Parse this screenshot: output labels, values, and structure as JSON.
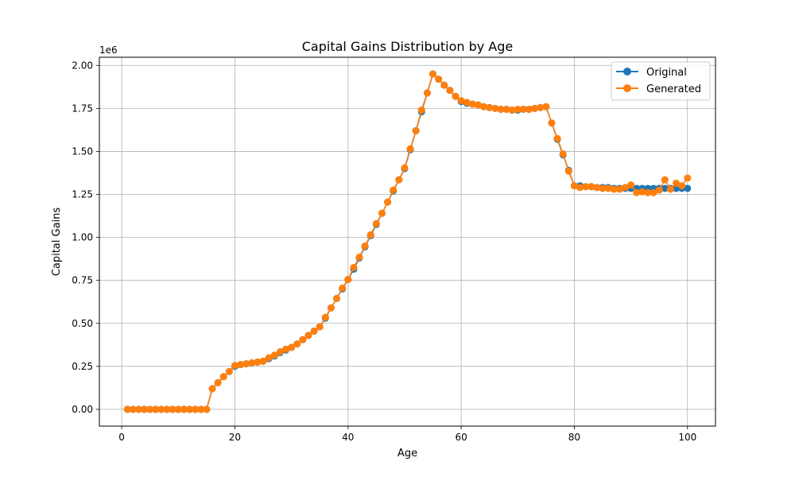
{
  "chart_data": {
    "type": "line",
    "title": "Capital Gains Distribution by Age",
    "xlabel": "Age",
    "ylabel": "Capital Gains",
    "y_exponent_label": "1e6",
    "xlim": [
      -3.95,
      104.95
    ],
    "ylim": [
      -0.0975,
      2.0475
    ],
    "y_scale": 1000000,
    "x_ticks": [
      0,
      20,
      40,
      60,
      80,
      100
    ],
    "x_tick_labels": [
      "0",
      "20",
      "40",
      "60",
      "80",
      "100"
    ],
    "y_ticks": [
      0,
      0.25,
      0.5,
      0.75,
      1.0,
      1.25,
      1.5,
      1.75,
      2.0
    ],
    "y_tick_labels": [
      "0.00",
      "0.25",
      "0.50",
      "0.75",
      "1.00",
      "1.25",
      "1.50",
      "1.75",
      "2.00"
    ],
    "grid": true,
    "legend_position": "top-right",
    "series": [
      {
        "name": "Original",
        "color": "#1f77b4",
        "x": [
          1,
          2,
          3,
          4,
          5,
          6,
          7,
          8,
          9,
          10,
          11,
          12,
          13,
          14,
          15,
          16,
          17,
          18,
          19,
          20,
          21,
          22,
          23,
          24,
          25,
          26,
          27,
          28,
          29,
          30,
          31,
          32,
          33,
          34,
          35,
          36,
          37,
          38,
          39,
          40,
          41,
          42,
          43,
          44,
          45,
          46,
          47,
          48,
          49,
          50,
          51,
          52,
          53,
          54,
          55,
          56,
          57,
          58,
          59,
          60,
          61,
          62,
          63,
          64,
          65,
          66,
          67,
          68,
          69,
          70,
          71,
          72,
          73,
          74,
          75,
          76,
          77,
          78,
          79,
          80,
          81,
          82,
          83,
          84,
          85,
          86,
          87,
          88,
          89,
          90,
          91,
          92,
          93,
          94,
          95,
          96,
          97,
          98,
          99,
          100
        ],
        "y": [
          0,
          0,
          0,
          0,
          0,
          0,
          0,
          0,
          0,
          0,
          0,
          0,
          0,
          0,
          0,
          0.12,
          0.155,
          0.19,
          0.22,
          0.25,
          0.26,
          0.265,
          0.27,
          0.275,
          0.28,
          0.295,
          0.31,
          0.33,
          0.345,
          0.36,
          0.38,
          0.405,
          0.43,
          0.455,
          0.48,
          0.53,
          0.59,
          0.645,
          0.7,
          0.755,
          0.815,
          0.88,
          0.945,
          1.01,
          1.075,
          1.14,
          1.205,
          1.27,
          1.335,
          1.4,
          1.51,
          1.62,
          1.73,
          1.84,
          1.95,
          1.92,
          1.885,
          1.855,
          1.82,
          1.79,
          1.78,
          1.775,
          1.77,
          1.76,
          1.755,
          1.75,
          1.745,
          1.745,
          1.74,
          1.74,
          1.745,
          1.745,
          1.75,
          1.755,
          1.76,
          1.665,
          1.57,
          1.48,
          1.39,
          1.3,
          1.3,
          1.295,
          1.295,
          1.29,
          1.29,
          1.29,
          1.285,
          1.285,
          1.285,
          1.285,
          1.285,
          1.285,
          1.285,
          1.285,
          1.285,
          1.285,
          1.285,
          1.285,
          1.285,
          1.285
        ]
      },
      {
        "name": "Generated",
        "color": "#ff7f0e",
        "x": [
          1,
          2,
          3,
          4,
          5,
          6,
          7,
          8,
          9,
          10,
          11,
          12,
          13,
          14,
          15,
          16,
          17,
          18,
          19,
          20,
          21,
          22,
          23,
          24,
          25,
          26,
          27,
          28,
          29,
          30,
          31,
          32,
          33,
          34,
          35,
          36,
          37,
          38,
          39,
          40,
          41,
          42,
          43,
          44,
          45,
          46,
          47,
          48,
          49,
          50,
          51,
          52,
          53,
          54,
          55,
          56,
          57,
          58,
          59,
          60,
          61,
          62,
          63,
          64,
          65,
          66,
          67,
          68,
          69,
          70,
          71,
          72,
          73,
          74,
          75,
          76,
          77,
          78,
          79,
          80,
          81,
          82,
          83,
          84,
          85,
          86,
          87,
          88,
          89,
          90,
          91,
          92,
          93,
          94,
          95,
          96,
          97,
          98,
          99,
          100
        ],
        "y": [
          0,
          0,
          0,
          0,
          0,
          0,
          0,
          0,
          0,
          0,
          0,
          0,
          0,
          0,
          0,
          0.12,
          0.155,
          0.19,
          0.22,
          0.255,
          0.26,
          0.265,
          0.27,
          0.275,
          0.28,
          0.3,
          0.315,
          0.335,
          0.35,
          0.36,
          0.38,
          0.405,
          0.43,
          0.455,
          0.48,
          0.535,
          0.59,
          0.645,
          0.705,
          0.755,
          0.825,
          0.885,
          0.95,
          1.015,
          1.08,
          1.14,
          1.205,
          1.275,
          1.335,
          1.405,
          1.515,
          1.62,
          1.74,
          1.84,
          1.95,
          1.92,
          1.885,
          1.855,
          1.82,
          1.795,
          1.785,
          1.775,
          1.77,
          1.76,
          1.755,
          1.75,
          1.745,
          1.745,
          1.74,
          1.745,
          1.745,
          1.745,
          1.75,
          1.755,
          1.76,
          1.665,
          1.575,
          1.485,
          1.385,
          1.3,
          1.29,
          1.295,
          1.295,
          1.29,
          1.285,
          1.285,
          1.28,
          1.28,
          1.29,
          1.305,
          1.26,
          1.265,
          1.26,
          1.26,
          1.275,
          1.335,
          1.28,
          1.315,
          1.3,
          1.345
        ]
      }
    ]
  }
}
